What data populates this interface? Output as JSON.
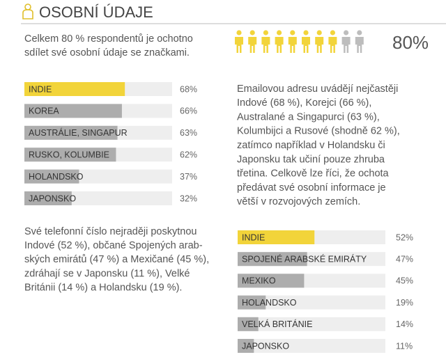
{
  "header": {
    "title": "OSOBNÍ ÚDAJE"
  },
  "intro": {
    "lines": [
      "Celkem 80 % respondentů je ochotno",
      "sdílet své osobní údaje se značkami."
    ]
  },
  "share": {
    "value": 80,
    "value_label": "80%",
    "icons": 10,
    "colors": [
      "#f2d43a",
      "#bdbdbd"
    ]
  },
  "email_text": {
    "lines": [
      "Emailovou adresu uvádějí nejčastěji",
      "Indové (68 %), Korejci (66 %),",
      "Australané a Singapurci (63 %),",
      "Kolumbijci a Rusové (shodně 62 %),",
      "zatímco například v Holandsku či",
      "Japonsku tak učiní pouze zhruba",
      "třetina. Celkově lze říci, že ochota",
      "předávat své osobní informace je",
      "větší v rozvojových zemích."
    ]
  },
  "phone_text": {
    "lines": [
      "Své telefonní číslo nejraději poskytnou",
      "Indové (52 %), občané Spojených arab-",
      "ských emirátů (47 %) a Mexičané (45 %),",
      "zdráhají se v Japonsku (11 %), Velké",
      "Británii (14 %) a Holandsku (19 %)."
    ]
  },
  "chart_data": [
    {
      "type": "bar",
      "categories": [
        "INDIE",
        "KOREA",
        "AUSTRÁLIE, SINGAPUR",
        "RUSKO, KOLUMBIE",
        "HOLANDSKO",
        "JAPONSKO"
      ],
      "values": [
        68,
        66,
        63,
        62,
        37,
        32
      ],
      "value_labels": [
        "68%",
        "66%",
        "63%",
        "62%",
        "37%",
        "32%"
      ],
      "colors": [
        "#f2d43a",
        "#adadad",
        "#adadad",
        "#adadad",
        "#adadad",
        "#adadad"
      ]
    },
    {
      "type": "bar",
      "categories": [
        "INDIE",
        "SPOJENÉ ARABSKÉ EMIRÁTY",
        "MEXIKO",
        "HOLANDSKO",
        "VELKÁ BRITÁNIE",
        "JAPONSKO"
      ],
      "values": [
        52,
        47,
        45,
        19,
        14,
        11
      ],
      "value_labels": [
        "52%",
        "47%",
        "45%",
        "19%",
        "14%",
        "11%"
      ],
      "colors": [
        "#f2d43a",
        "#adadad",
        "#adadad",
        "#adadad",
        "#adadad",
        "#adadad"
      ]
    }
  ]
}
